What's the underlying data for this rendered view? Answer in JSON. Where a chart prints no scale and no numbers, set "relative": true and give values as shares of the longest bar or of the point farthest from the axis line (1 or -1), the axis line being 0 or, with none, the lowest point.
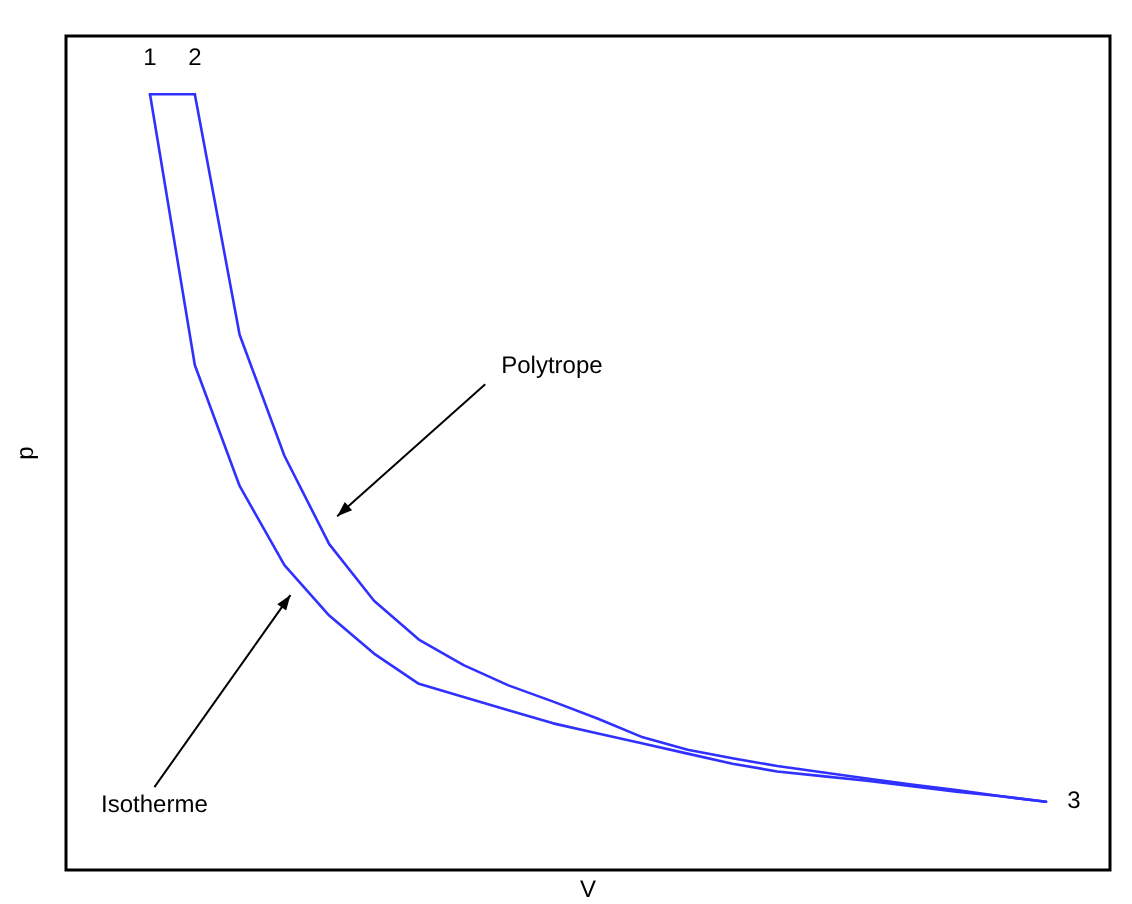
{
  "chart_data": {
    "type": "line",
    "xlabel": "V",
    "ylabel": "p",
    "relative": true,
    "marker": "none",
    "line_style": "solid",
    "categories": [
      null,
      null,
      null,
      null,
      null,
      null,
      null,
      null,
      null,
      null,
      null,
      null,
      null,
      null,
      null,
      null,
      null,
      null,
      null,
      null,
      null
    ],
    "series": [
      {
        "color": "#3030ff",
        "values": [
          1,
          0.651,
          0.495,
          0.393,
          0.328,
          0.279,
          0.24,
          0.223,
          0.206,
          0.189,
          0.176,
          0.163,
          0.15,
          0.137,
          0.127,
          0.121,
          0.115,
          0.108,
          0.101,
          0.095,
          0.088
        ]
      },
      {
        "color": "#3030ff",
        "values": [
          null,
          1,
          0.69,
          0.534,
          0.42,
          0.347,
          0.297,
          0.264,
          0.238,
          0.217,
          0.195,
          0.171,
          0.155,
          0.144,
          0.134,
          0.126,
          0.118,
          0.11,
          0.103,
          0.095,
          0.088
        ]
      },
      {
        "color": "#3030ff",
        "values": [
          1,
          1,
          null,
          null,
          null,
          null,
          null,
          null,
          null,
          null,
          null,
          null,
          null,
          null,
          null,
          null,
          null,
          null,
          null,
          null,
          null
        ]
      }
    ],
    "annotations": [
      "1",
      "2",
      "3",
      "Polytrope",
      "Isotherme"
    ]
  }
}
